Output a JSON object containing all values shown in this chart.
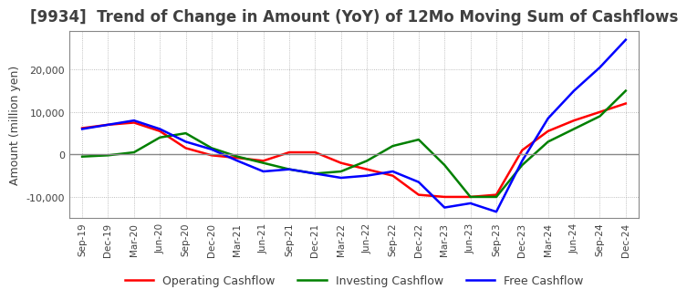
{
  "title": "[9934]  Trend of Change in Amount (YoY) of 12Mo Moving Sum of Cashflows",
  "ylabel": "Amount (million yen)",
  "x_labels": [
    "Sep-19",
    "Dec-19",
    "Mar-20",
    "Jun-20",
    "Sep-20",
    "Dec-20",
    "Mar-21",
    "Jun-21",
    "Sep-21",
    "Dec-21",
    "Mar-22",
    "Jun-22",
    "Sep-22",
    "Dec-22",
    "Mar-23",
    "Jun-23",
    "Sep-23",
    "Dec-23",
    "Mar-24",
    "Jun-24",
    "Sep-24",
    "Dec-24"
  ],
  "operating": [
    6200,
    7000,
    7500,
    5500,
    1500,
    -200,
    -800,
    -1500,
    500,
    500,
    -2000,
    -3500,
    -5000,
    -9500,
    -10000,
    -10000,
    -9500,
    1000,
    5500,
    8000,
    10000,
    12000
  ],
  "investing": [
    -500,
    -200,
    500,
    4000,
    5000,
    1500,
    -500,
    -2000,
    -3500,
    -4500,
    -4000,
    -1500,
    2000,
    3500,
    -2500,
    -10000,
    -10000,
    -2500,
    3000,
    6000,
    9000,
    15000
  ],
  "free": [
    6000,
    7000,
    8000,
    6000,
    3000,
    1200,
    -1500,
    -4000,
    -3500,
    -4500,
    -5500,
    -5000,
    -4000,
    -6500,
    -12500,
    -11500,
    -13500,
    -1500,
    8500,
    15000,
    20500,
    27000
  ],
  "ylim": [
    -15000,
    29000
  ],
  "yticks": [
    -10000,
    0,
    10000,
    20000
  ],
  "operating_color": "#ff0000",
  "investing_color": "#008000",
  "free_color": "#0000ff",
  "grid_color": "#aaaaaa",
  "background_color": "#ffffff",
  "title_color": "#404040",
  "title_fontsize": 12,
  "border_color": "#888888"
}
